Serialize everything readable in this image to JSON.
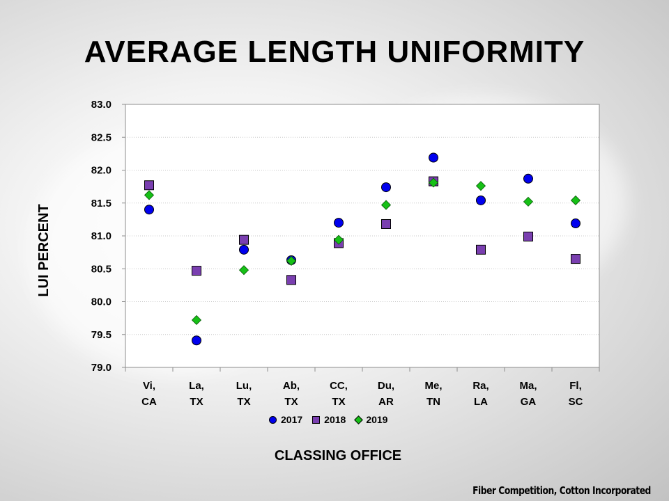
{
  "title": "AVERAGE LENGTH UNIFORMITY",
  "credit": "Fiber Competition, Cotton Incorporated",
  "chart_data": {
    "type": "scatter",
    "title": "AVERAGE LENGTH UNIFORMITY",
    "xlabel": "CLASSING OFFICE",
    "ylabel": "LUI PERCENT",
    "ylim": [
      79.0,
      83.0
    ],
    "yticks": [
      "79.0",
      "79.5",
      "80.0",
      "80.5",
      "81.0",
      "81.5",
      "82.0",
      "82.5",
      "83.0"
    ],
    "categories": [
      [
        "Vi,",
        "CA"
      ],
      [
        "La,",
        "TX"
      ],
      [
        "Lu,",
        "TX"
      ],
      [
        "Ab,",
        "TX"
      ],
      [
        "CC,",
        "TX"
      ],
      [
        "Du,",
        "AR"
      ],
      [
        "Me,",
        "TN"
      ],
      [
        "Ra,",
        "LA"
      ],
      [
        "Ma,",
        "GA"
      ],
      [
        "Fl,",
        "SC"
      ]
    ],
    "grid": "horizontal",
    "legend_position": "bottom",
    "series": [
      {
        "name": "2017",
        "marker": "circle",
        "color": "#0000ee",
        "values": [
          81.4,
          79.41,
          80.79,
          80.63,
          81.2,
          81.74,
          82.19,
          81.54,
          81.87,
          81.19
        ]
      },
      {
        "name": "2018",
        "marker": "square",
        "color": "#7a3fb0",
        "values": [
          81.77,
          80.47,
          80.94,
          80.33,
          80.89,
          81.18,
          81.83,
          80.79,
          80.99,
          80.65
        ]
      },
      {
        "name": "2019",
        "marker": "diamond",
        "color": "#16c016",
        "values": [
          81.62,
          79.72,
          80.48,
          80.62,
          80.94,
          81.47,
          81.81,
          81.76,
          81.52,
          81.54
        ]
      }
    ]
  }
}
